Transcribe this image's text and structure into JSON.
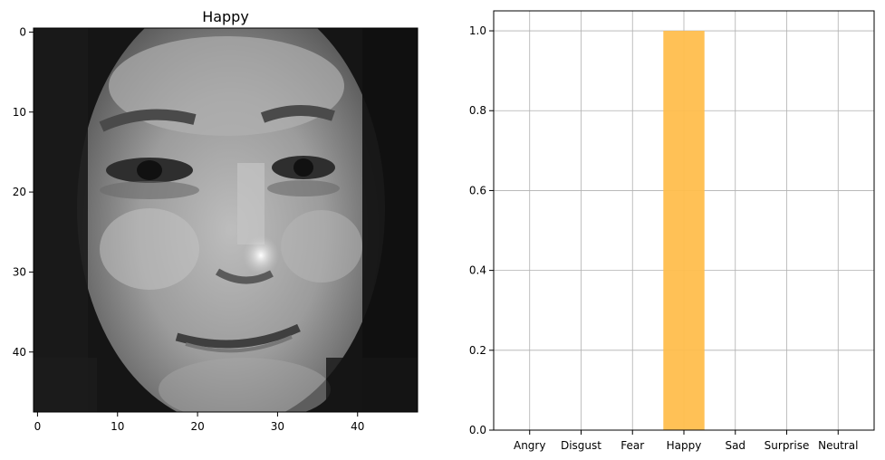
{
  "chart_data": [
    {
      "type": "heatmap",
      "title": "Happy",
      "image_kind": "grayscale face image",
      "colormap": "gray",
      "xlim": [
        -0.5,
        47.5
      ],
      "ylim": [
        47.5,
        -0.5
      ],
      "xticks": [
        0,
        10,
        20,
        30,
        40
      ],
      "yticks": [
        0,
        10,
        20,
        30,
        40
      ],
      "xlabel": "",
      "ylabel": ""
    },
    {
      "type": "bar",
      "title": "",
      "categories": [
        "Angry",
        "Disgust",
        "Fear",
        "Happy",
        "Sad",
        "Surprise",
        "Neutral"
      ],
      "values": [
        0,
        0,
        0,
        1.0,
        0,
        0,
        0
      ],
      "bar_color": "#ffbe4d",
      "ylim": [
        0,
        1.05
      ],
      "yticks": [
        0.0,
        0.2,
        0.4,
        0.6,
        0.8,
        1.0
      ],
      "grid": true,
      "xlabel": "",
      "ylabel": ""
    }
  ]
}
